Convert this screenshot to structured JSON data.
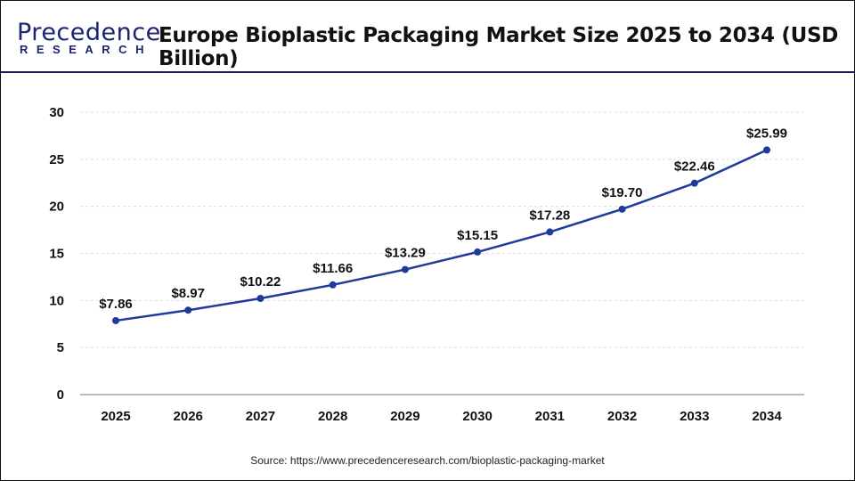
{
  "header": {
    "logo_text": "Precedence",
    "logo_sub": "RESEARCH",
    "title": "Europe Bioplastic Packaging Market Size 2025 to 2034 (USD Billion)"
  },
  "source": "Source: https://www.precedenceresearch.com/bioplastic-packaging-market",
  "colors": {
    "line": "#1f3a9a",
    "header_rule": "#141a4a",
    "grid": "#dddddd"
  },
  "chart_data": {
    "type": "line",
    "title": "Europe Bioplastic Packaging Market Size 2025 to 2034 (USD Billion)",
    "categories": [
      "2025",
      "2026",
      "2027",
      "2028",
      "2029",
      "2030",
      "2031",
      "2032",
      "2033",
      "2034"
    ],
    "values": [
      7.86,
      8.97,
      10.22,
      11.66,
      13.29,
      15.15,
      17.28,
      19.7,
      22.46,
      25.99
    ],
    "data_labels": [
      "$7.86",
      "$8.97",
      "$10.22",
      "$11.66",
      "$13.29",
      "$15.15",
      "$17.28",
      "$19.70",
      "$22.46",
      "$25.99"
    ],
    "yticks": [
      0,
      5,
      10,
      15,
      20,
      25,
      30
    ],
    "ylim": [
      0,
      30
    ],
    "grid": true,
    "legend": "none"
  }
}
